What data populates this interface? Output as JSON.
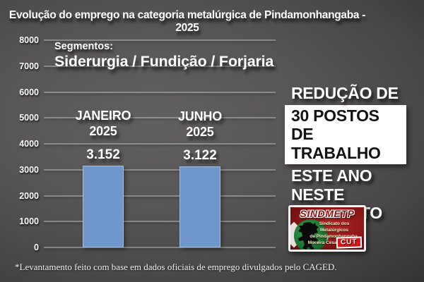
{
  "title": "Evolução do emprego na categoria metalúrgica de Pindamonhangaba - 2025",
  "segments": {
    "label": "Segmentos:",
    "value": "Siderurgia / Fundição / Forjaria"
  },
  "chart_data": {
    "type": "bar",
    "title": "Evolução do emprego na categoria metalúrgica de Pindamonhangaba - 2025",
    "categories": [
      "JANEIRO 2025",
      "JUNHO 2025"
    ],
    "values": [
      3152,
      3122
    ],
    "value_labels": [
      "3.152",
      "3.122"
    ],
    "xlabel": "",
    "ylabel": "",
    "ylim": [
      0,
      8000
    ],
    "ytick_step": 1000,
    "grid": true,
    "legend": false,
    "bar_color": "#7097CB"
  },
  "callout": {
    "intro": "REDUÇÃO DE",
    "highlight1": "30 POSTOS",
    "highlight2": "DE TRABALHO",
    "outro1": "ESTE ANO",
    "outro2": "NESTE",
    "outro3": "SEGMENTO"
  },
  "logo": {
    "name": "SINDMETP",
    "sub1": "Sindicato dos Metalúrgicos",
    "sub2": "de Pindamonhangaba,",
    "sub3": "Moreira César e Roseira",
    "badge": "CUT"
  },
  "footnote": "*Levantamento feito com base em dados oficiais de emprego divulgados pelo CAGED.",
  "colors": {
    "bar_fill": "#7097CB",
    "highlight_box": "#FFFFFF",
    "logo_red": "#8E1818",
    "cut_red": "#D61717",
    "circle_green": "#1E7A33"
  }
}
